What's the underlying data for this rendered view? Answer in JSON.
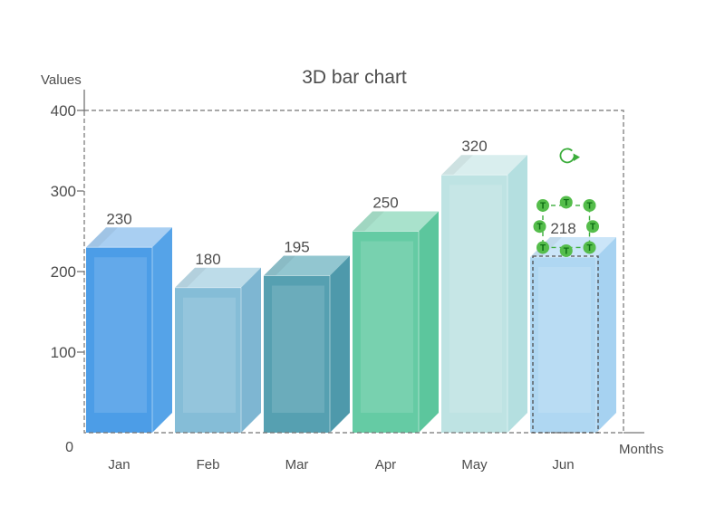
{
  "chart_data": {
    "type": "bar",
    "variant": "3d-column",
    "title": "3D bar chart",
    "ylabel": "Values",
    "xlabel": "Months",
    "categories": [
      "Jan",
      "Feb",
      "Mar",
      "Apr",
      "May",
      "Jun"
    ],
    "values": [
      230,
      180,
      195,
      250,
      320,
      218
    ],
    "value_labels": [
      "230",
      "180",
      "195",
      "250",
      "320",
      "218"
    ],
    "yticks": [
      0,
      100,
      200,
      300,
      400
    ],
    "ytick_labels": [
      "0",
      "100",
      "200",
      "300",
      "400"
    ],
    "ylim": [
      0,
      400
    ],
    "grid": false,
    "legend": "none",
    "value_labels_shown": true,
    "text_color": "#4d4d4d",
    "axis_color": "#737373",
    "plot_border_style": "dashed",
    "bar_colors": [
      {
        "front": "#4C9DE7",
        "top": "#A9CFF2",
        "side": "#55A3E8"
      },
      {
        "front": "#85BDD7",
        "top": "#BDDCE9",
        "side": "#7EB6D2"
      },
      {
        "front": "#56A0B1",
        "top": "#92C6D0",
        "side": "#4E99AB"
      },
      {
        "front": "#65CBA4",
        "top": "#A9E2CC",
        "side": "#5CC69D"
      },
      {
        "front": "#BEE3E3",
        "top": "#D9EEEE",
        "side": "#B4DFE0"
      },
      {
        "front": "#AFD7F2",
        "top": "#CBE5F8",
        "side": "#A6D2F1"
      }
    ]
  },
  "selection": {
    "selected_category": "Jun",
    "selected_value_label": "218",
    "handle_glyph": "T",
    "handle_count": 8,
    "handle_fill": "#55BD4B",
    "handle_glyph_color": "#0a6b12",
    "outline_color": "#3cad3c",
    "bar_outline_color": "#4f4f4f",
    "rotation_handle": "rotate-arrow"
  }
}
